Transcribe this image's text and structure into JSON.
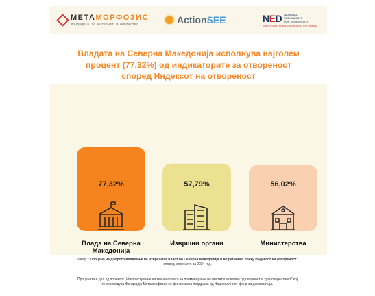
{
  "logos": {
    "metamorfozis": {
      "name_a": "МЕТА",
      "name_b": "МОРФОЗИС",
      "tagline": "Фондација за интернет и општество"
    },
    "actionsee": {
      "name_a": "Action",
      "name_b": "SEE"
    },
    "ned": {
      "name_a": "N",
      "name_b": "E",
      "name_c": "D",
      "tagline": "NATIONAL ENDOWMENT FOR DEMOCRACY",
      "sub": "SUPPORTING FREEDOM AROUND THE WORLD"
    }
  },
  "title_lines": [
    "Владата на Северна Македонија исполнува најголем",
    "процент (77,32%) од индикаторите за отвореност",
    "според Индексот на отвореност"
  ],
  "chart_data": {
    "type": "bar",
    "categories": [
      "Влада на Северна Македонија",
      "Извршни органи",
      "Министерства"
    ],
    "category_lines": [
      [
        "Влада на Северна",
        "Македонија"
      ],
      [
        "Извршни органи"
      ],
      [
        "Министерства"
      ]
    ],
    "values": [
      77.32,
      57.79,
      56.02
    ],
    "data_labels": [
      "77,32%",
      "57,79%",
      "56,02%"
    ],
    "unit": "%",
    "ylim": [
      0,
      100
    ],
    "colors": [
      "#f5841f",
      "#ebe190",
      "#f9d1b0"
    ],
    "icons": [
      "government-building-icon",
      "office-towers-icon",
      "ministry-building-icon"
    ],
    "grid": false,
    "legend": "none"
  },
  "source": {
    "prefix": "Извор: ",
    "title": "\"Процена на доброто владеење на извршната власт во Северна Македонија и во регионот преку Индексот на отвореност\"",
    "suffix": " според мерењето за 2024 год.",
    "note_line1": "Процената е дел од проектот „Искористување на технологијата за промовирање на институционална одговорност и транспарентност\" кој",
    "note_line2": "го спроведува Фондација Метаморфозис со финансиска поддршка од Националниот фонд за демократија."
  }
}
